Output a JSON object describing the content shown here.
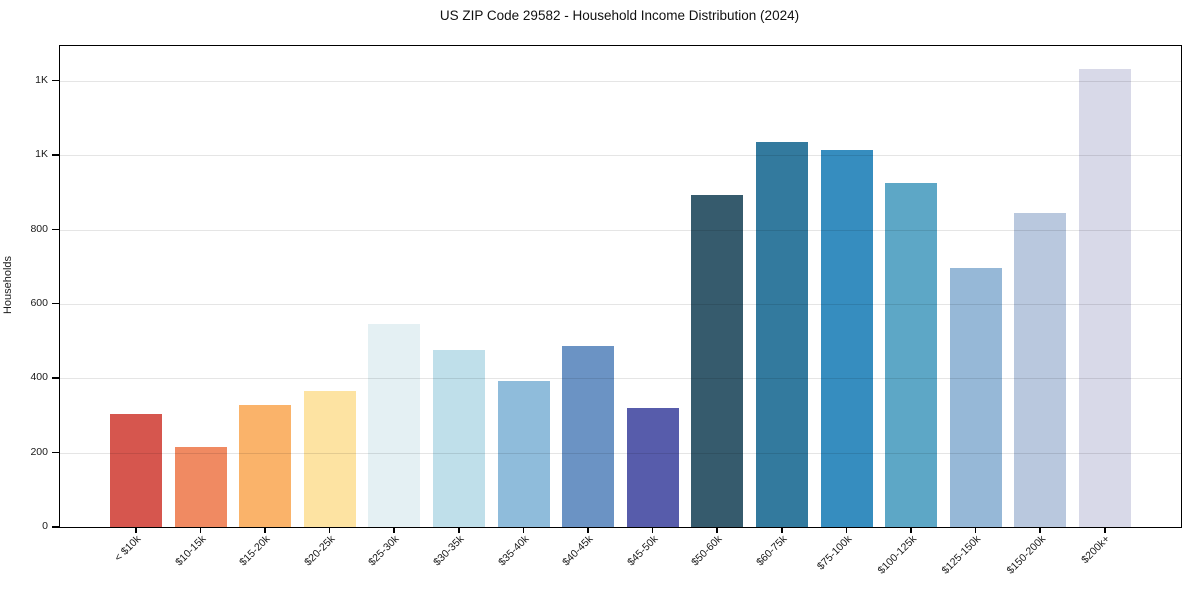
{
  "figure": {
    "background": "#ffffff",
    "text_color": "#1a1a1a",
    "spine_color": "#000000",
    "grid_color": "#e5e5e5"
  },
  "chart_data": {
    "type": "bar",
    "title": "US ZIP Code 29582 - Household Income Distribution (2024)",
    "xlabel": "",
    "ylabel": "Households",
    "legend": "none",
    "grid": "horizontal",
    "ylim": [
      0,
      1294
    ],
    "yticks": [
      {
        "value": 0,
        "label": "0"
      },
      {
        "value": 200,
        "label": "200"
      },
      {
        "value": 400,
        "label": "400"
      },
      {
        "value": 600,
        "label": "600"
      },
      {
        "value": 800,
        "label": "800"
      },
      {
        "value": 1000,
        "label": "1K"
      },
      {
        "value": 1200,
        "label": "1K"
      }
    ],
    "categories": [
      "< $10k",
      "$10-15k",
      "$15-20k",
      "$20-25k",
      "$25-30k",
      "$30-35k",
      "$35-40k",
      "$40-45k",
      "$45-50k",
      "$50-60k",
      "$60-75k",
      "$75-100k",
      "$100-125k",
      "$125-150k",
      "$150-200k",
      "$200k+"
    ],
    "values": [
      305,
      215,
      327,
      365,
      545,
      477,
      392,
      486,
      320,
      892,
      1037,
      1014,
      926,
      698,
      846,
      1232
    ],
    "bar_colors": [
      "#d6564e",
      "#f08a62",
      "#fab36a",
      "#fde3a2",
      "#e4f0f3",
      "#bfdfea",
      "#8fbcdb",
      "#6b93c4",
      "#575cab",
      "#365b6d",
      "#337a9e",
      "#368dbf",
      "#5da7c6",
      "#96b8d7",
      "#b9c8de",
      "#d8d9e8"
    ]
  }
}
